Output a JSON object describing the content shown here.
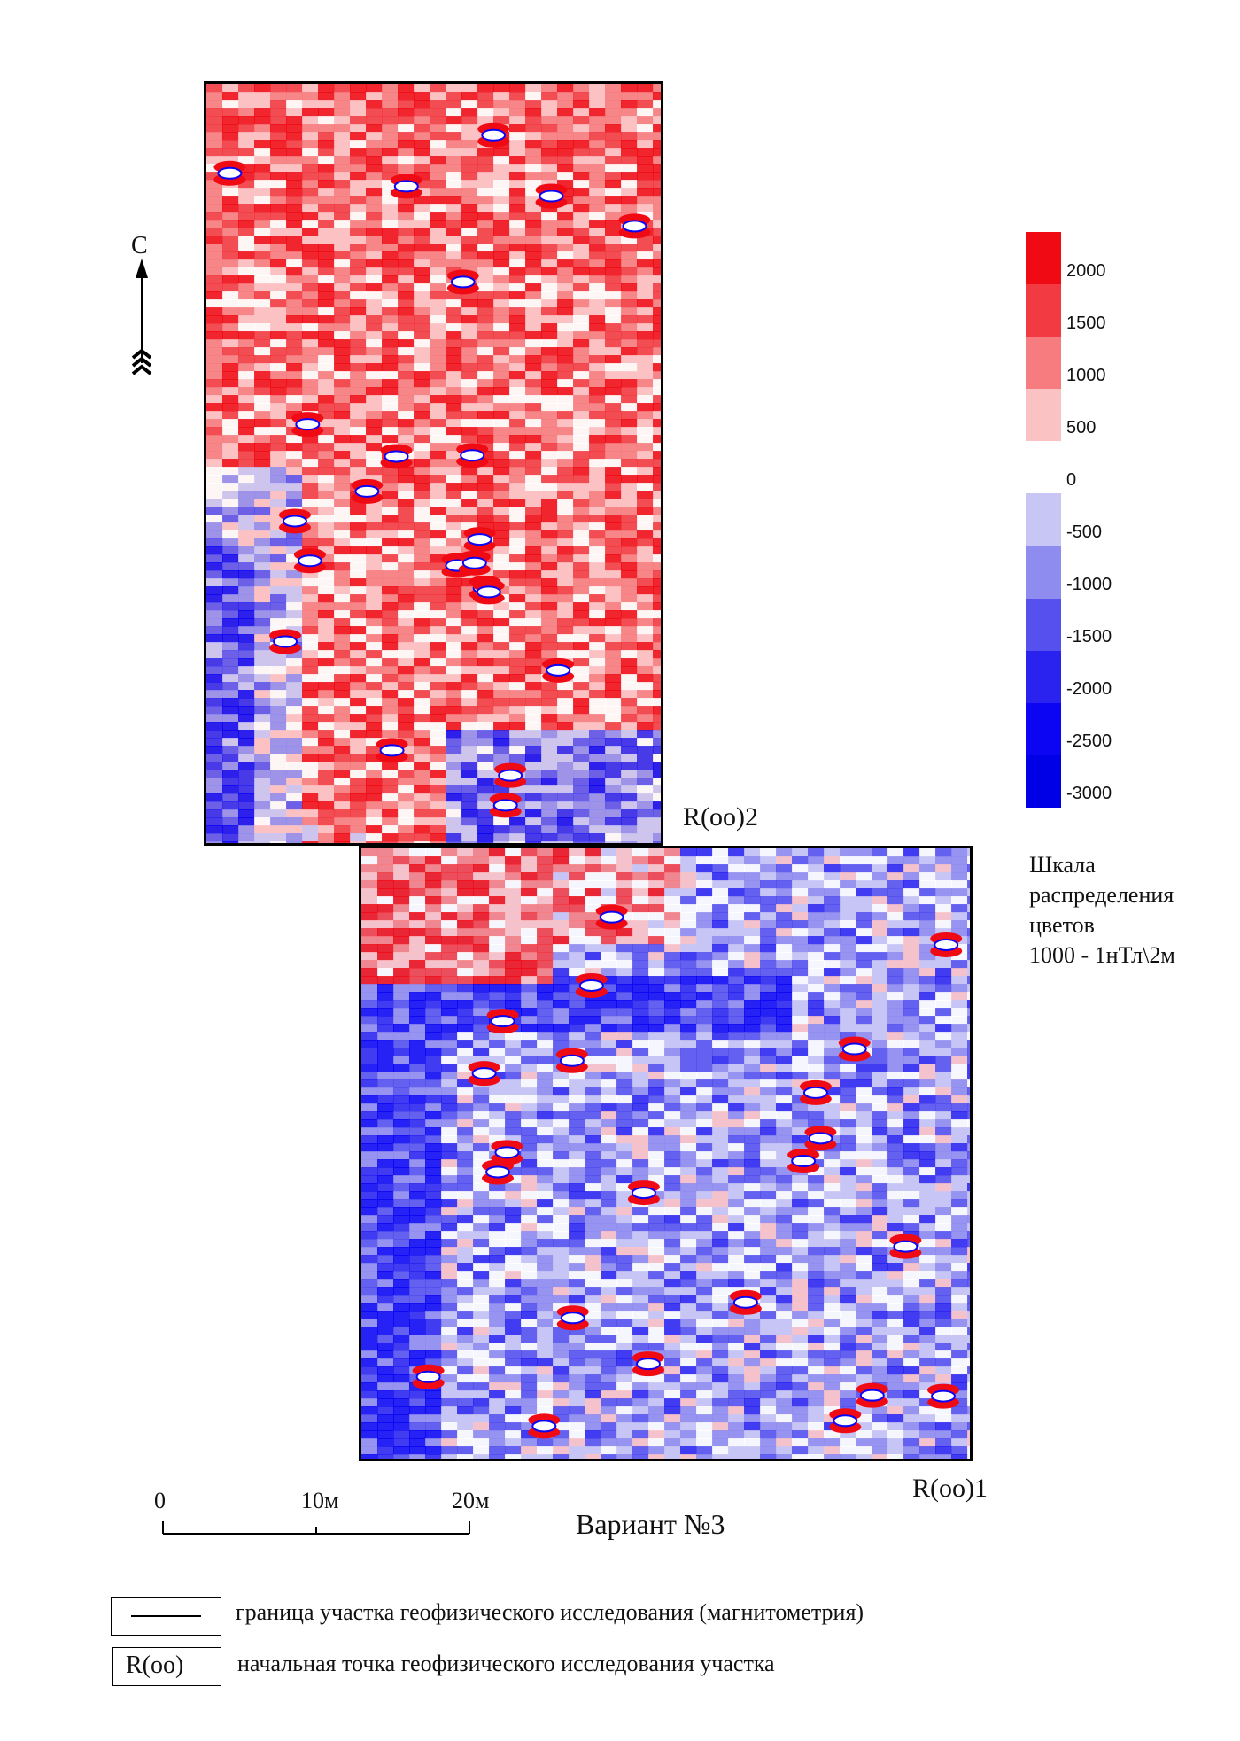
{
  "north_label": "С",
  "variant_title": "Вариант №3",
  "start_point_upper": "R(оо)2",
  "start_point_lower": "R(оо)1",
  "scale_bar": {
    "labels": [
      "0",
      "10м",
      "20м"
    ]
  },
  "color_scale": {
    "title_lines": [
      "Шкала",
      "распределения",
      "цветов",
      "1000 - 1нТл\\2м"
    ],
    "tick_labels": [
      "2000",
      "1500",
      "1000",
      "500",
      "0",
      "-500",
      "-1000",
      "-1500",
      "-2000",
      "-2500",
      "-3000"
    ],
    "band_colors": [
      "#f00a14",
      "#f23a42",
      "#f77c80",
      "#fbc2c4",
      "#ffffff",
      "#c8c6f4",
      "#8f8cf0",
      "#5550ee",
      "#2a23f0",
      "#0b05f3",
      "#0000e6"
    ]
  },
  "legend": {
    "boundary_text": "граница участка геофизического исследования (магнитометрия)",
    "start_symbol": "R(оо)",
    "start_text": "начальная точка геофизического исследования участка"
  },
  "colors": {
    "positive": "#f00a14",
    "negative": "#0a06e8",
    "neutral": "#ffffff"
  }
}
